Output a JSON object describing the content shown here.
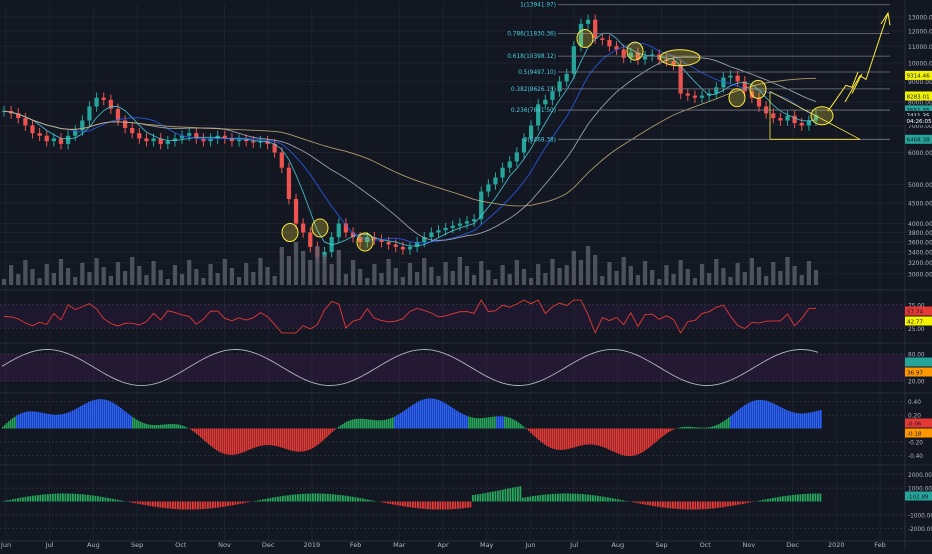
{
  "colors": {
    "background": "#131722",
    "grid": "#1e222d",
    "up": "#26a69a",
    "down": "#ef5350",
    "volume": "#5d606b",
    "fib_line": "#787b86",
    "fib_text": "#4dd0e1",
    "trend_arrow": "#ffeb3b",
    "highlight_circle": "#ffeb3b",
    "rsi_line": "#e53935",
    "osc_line": "#b2b5be",
    "macd_green": "#26a65b",
    "macd_red": "#e53935",
    "macd_blue": "#2962ff",
    "axis_text": "#b2b5be"
  },
  "chart_data": [
    {
      "type": "candlestick",
      "panel": "price",
      "x_axis": {
        "labels": [
          "Jun",
          "Jul",
          "Aug",
          "Sep",
          "Oct",
          "Nov",
          "Dec",
          "2019",
          "Feb",
          "Mar",
          "Apr",
          "May",
          "Jun",
          "Jul",
          "Aug",
          "Sep",
          "Oct",
          "Nov",
          "Dec",
          "2020",
          "Feb"
        ]
      },
      "y_axis": {
        "scale": "log",
        "ticks": [
          13000,
          12000,
          11000,
          10000,
          9000,
          8000,
          7000,
          6000,
          5000,
          4500,
          4000,
          3800,
          3600,
          3400,
          3200,
          3000
        ],
        "tick_labels": [
          "13000.00",
          "12000.00",
          "11000.00",
          "10000.00",
          "9000.00",
          "8000.00",
          "7000.00",
          "6000.00",
          "5000.00",
          "4500.00",
          "4000.00",
          "3800.00",
          "3600.00",
          "3400.00",
          "3200.00",
          "3000.00"
        ],
        "ylim": [
          2800,
          14000
        ]
      },
      "price_labels": [
        {
          "value": 9314.46,
          "text": "9314.46",
          "color": "#f4f400"
        },
        {
          "value": 8283.01,
          "text": "8283.01",
          "color": "#f4f400"
        },
        {
          "value": 7651.35,
          "text": "7651.35",
          "color": "#26a69a"
        },
        {
          "value": 7411.35,
          "text": "7411.35",
          "color": "#ffffff"
        },
        {
          "value": 7200,
          "text": "04:26:05",
          "color": "#ffffff"
        },
        {
          "value": 6468.38,
          "text": "6468.38",
          "color": "#26a69a"
        }
      ],
      "fibonacci": [
        {
          "ratio": 1,
          "value": 13941.97,
          "label": "1(13941.97)"
        },
        {
          "ratio": 0.786,
          "value": 11830.36,
          "label": "0.786(11830.36)"
        },
        {
          "ratio": 0.618,
          "value": 10398.12,
          "label": "0.618(10398.12)"
        },
        {
          "ratio": 0.5,
          "value": 9497.1,
          "label": "0.5(9497.10)"
        },
        {
          "ratio": 0.382,
          "value": 8626.15,
          "label": "0.382(8626.15)"
        },
        {
          "ratio": 0.236,
          "value": 7641.5,
          "label": "0.236(7641.50)"
        },
        {
          "ratio": 0,
          "value": 6468.38,
          "label": "0(6468.38)"
        }
      ],
      "series_close": [
        7600,
        7500,
        7300,
        7000,
        6700,
        6600,
        6400,
        6500,
        6300,
        6600,
        6800,
        7200,
        7800,
        8200,
        8100,
        7700,
        7200,
        6900,
        6700,
        6500,
        6400,
        6500,
        6300,
        6400,
        6500,
        6600,
        6700,
        6500,
        6400,
        6500,
        6600,
        6500,
        6400,
        6450,
        6400,
        6350,
        6400,
        6300,
        6000,
        5500,
        4600,
        4000,
        3800,
        3500,
        3300,
        3400,
        3700,
        4000,
        3800,
        3700,
        3600,
        3700,
        3650,
        3600,
        3550,
        3500,
        3450,
        3500,
        3600,
        3700,
        3800,
        3850,
        3900,
        3950,
        4000,
        4050,
        4100,
        4800,
        5000,
        5200,
        5500,
        5700,
        6000,
        6500,
        7000,
        7900,
        8100,
        8500,
        9000,
        9400,
        11000,
        12500,
        12800,
        11500,
        11400,
        11000,
        10800,
        10300,
        10600,
        10200,
        10400,
        10500,
        10200,
        10100,
        9900,
        8400,
        8300,
        8200,
        8300,
        8400,
        8700,
        9200,
        9300,
        9000,
        8500,
        8200,
        7800,
        7500,
        7300,
        7200,
        7400,
        7100,
        7000,
        7200,
        7411
      ],
      "annotations": [
        "9314.46 target arrows",
        "highlight circles on consolidation points",
        "descending wedge at Dec"
      ]
    },
    {
      "type": "line",
      "panel": "rsi",
      "y_axis": {
        "ticks": [
          75,
          25
        ],
        "tick_labels": [
          "75.00",
          "25.00"
        ],
        "ylim": [
          0,
          100
        ]
      },
      "value_labels": [
        {
          "text": "57.74",
          "color": "#e53935"
        },
        {
          "text": "42.77",
          "color": "#f4f400"
        }
      ]
    },
    {
      "type": "line",
      "panel": "stoch_oscillator",
      "y_axis": {
        "ticks": [
          80,
          20
        ],
        "tick_labels": [
          "80.00",
          "20.00"
        ],
        "ylim": [
          0,
          100
        ]
      },
      "value_labels": [
        {
          "text": "",
          "color": "#26a69a"
        },
        {
          "text": "36.97",
          "color": "#ff9800"
        }
      ]
    },
    {
      "type": "bar",
      "panel": "momentum_histogram",
      "y_axis": {
        "ticks": [
          0.4,
          0.2,
          -0.2,
          -0.4
        ],
        "tick_labels": [
          "0.40",
          "0.20",
          "-0.20",
          "-0.40"
        ],
        "ylim": [
          -0.5,
          0.5
        ]
      },
      "value_labels": [
        {
          "text": "-0.06",
          "color": "#e53935"
        },
        {
          "text": "-0.18",
          "color": "#ff9800"
        }
      ]
    },
    {
      "type": "bar",
      "panel": "macd_histogram",
      "y_axis": {
        "ticks": [
          2000,
          1000,
          -1000,
          -2000
        ],
        "tick_labels": [
          "2000.00",
          "1000.00",
          "-1000.00",
          "-2000.00"
        ],
        "ylim": [
          -2500,
          2500
        ]
      },
      "value_labels": [
        {
          "text": "-102.89",
          "color": "#26a69a"
        }
      ]
    }
  ]
}
